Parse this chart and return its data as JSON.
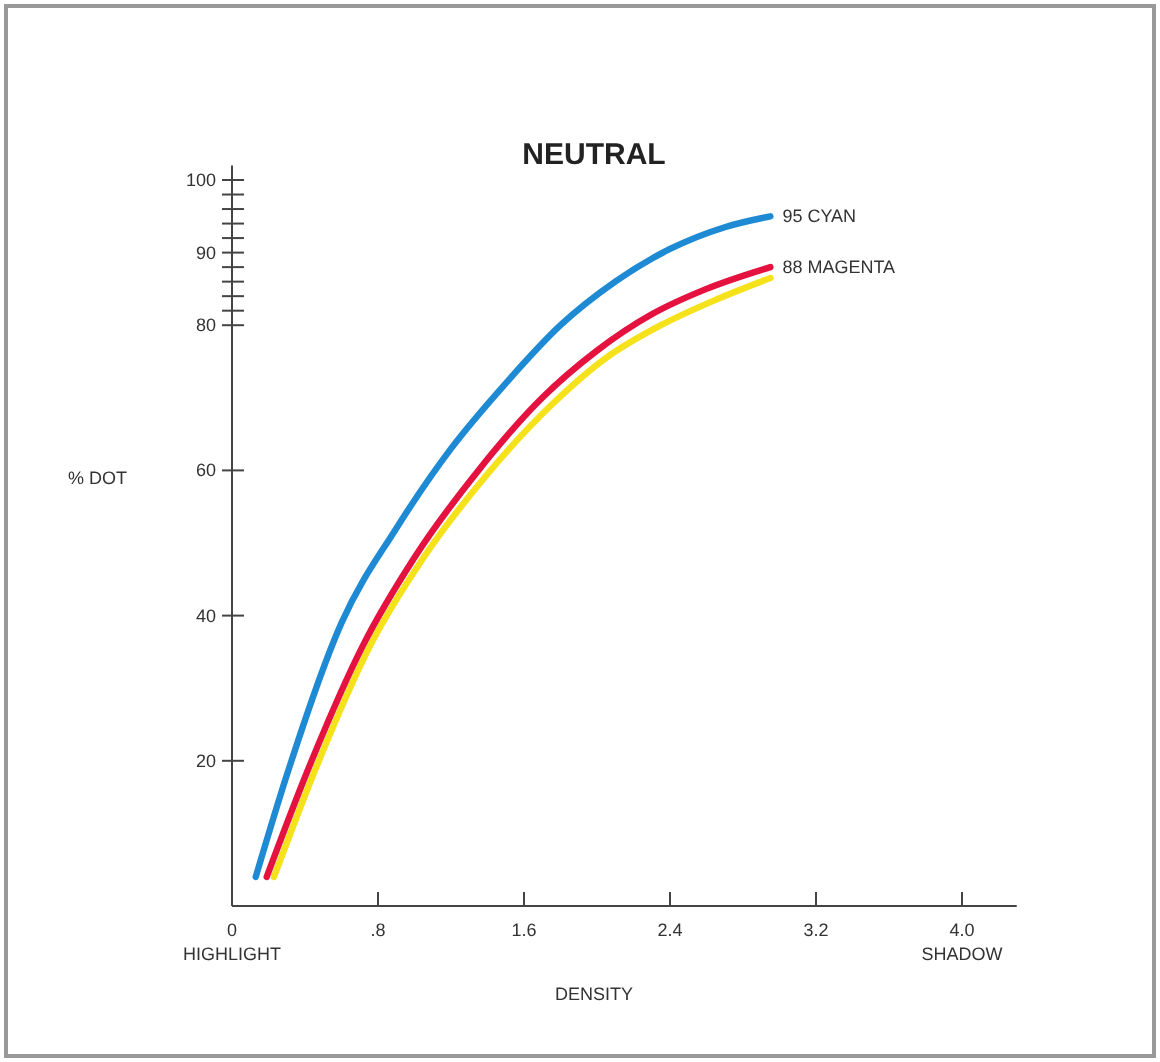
{
  "chart_data": {
    "type": "line",
    "title": "NEUTRAL",
    "xlabel": "DENSITY",
    "ylabel": "% DOT",
    "xlim": [
      0,
      4.3
    ],
    "ylim": [
      0,
      102
    ],
    "xticks": [
      {
        "value": 0,
        "label": "0\nHIGHLIGHT"
      },
      {
        "value": 0.8,
        "label": ".8"
      },
      1.6,
      2.4,
      3.2,
      {
        "value": 4,
        "label": "4.0\nSHADOW"
      }
    ],
    "yticks": [
      20,
      40,
      60,
      80,
      {
        "value": 82,
        "label": null
      },
      {
        "value": 84,
        "label": null
      },
      {
        "value": 86,
        "label": null
      },
      {
        "value": 88,
        "label": null
      },
      90,
      {
        "value": 92,
        "label": null
      },
      {
        "value": 94,
        "label": null
      },
      {
        "value": 96,
        "label": null
      },
      {
        "value": 98,
        "label": null
      },
      100
    ],
    "grid": false,
    "legend": false,
    "marker": "none",
    "line_style": "solid",
    "series": [
      {
        "color": "#f5e21a",
        "x": [
          0.23,
          0.46,
          0.76,
          1.05,
          1.4,
          1.75,
          2.05,
          2.35,
          2.65,
          2.95
        ],
        "values": [
          4,
          19,
          36,
          48,
          59.5,
          69,
          75.5,
          80,
          83.5,
          86.5
        ]
      },
      {
        "name": "88 MAGENTA",
        "color": "#e5113e",
        "x": [
          0.19,
          0.42,
          0.72,
          1.0,
          1.35,
          1.7,
          2.0,
          2.3,
          2.6,
          2.95
        ],
        "values": [
          4,
          19,
          36,
          48,
          60,
          70,
          76.5,
          81.5,
          85,
          88
        ]
      },
      {
        "name": "95 CYAN",
        "color": "#1e8ad4",
        "x": [
          0.13,
          0.3,
          0.6,
          0.9,
          1.2,
          1.5,
          1.8,
          2.1,
          2.4,
          2.7,
          2.95
        ],
        "values": [
          4,
          18,
          39,
          52,
          63,
          72,
          80,
          86,
          90.5,
          93.5,
          95
        ]
      }
    ]
  }
}
